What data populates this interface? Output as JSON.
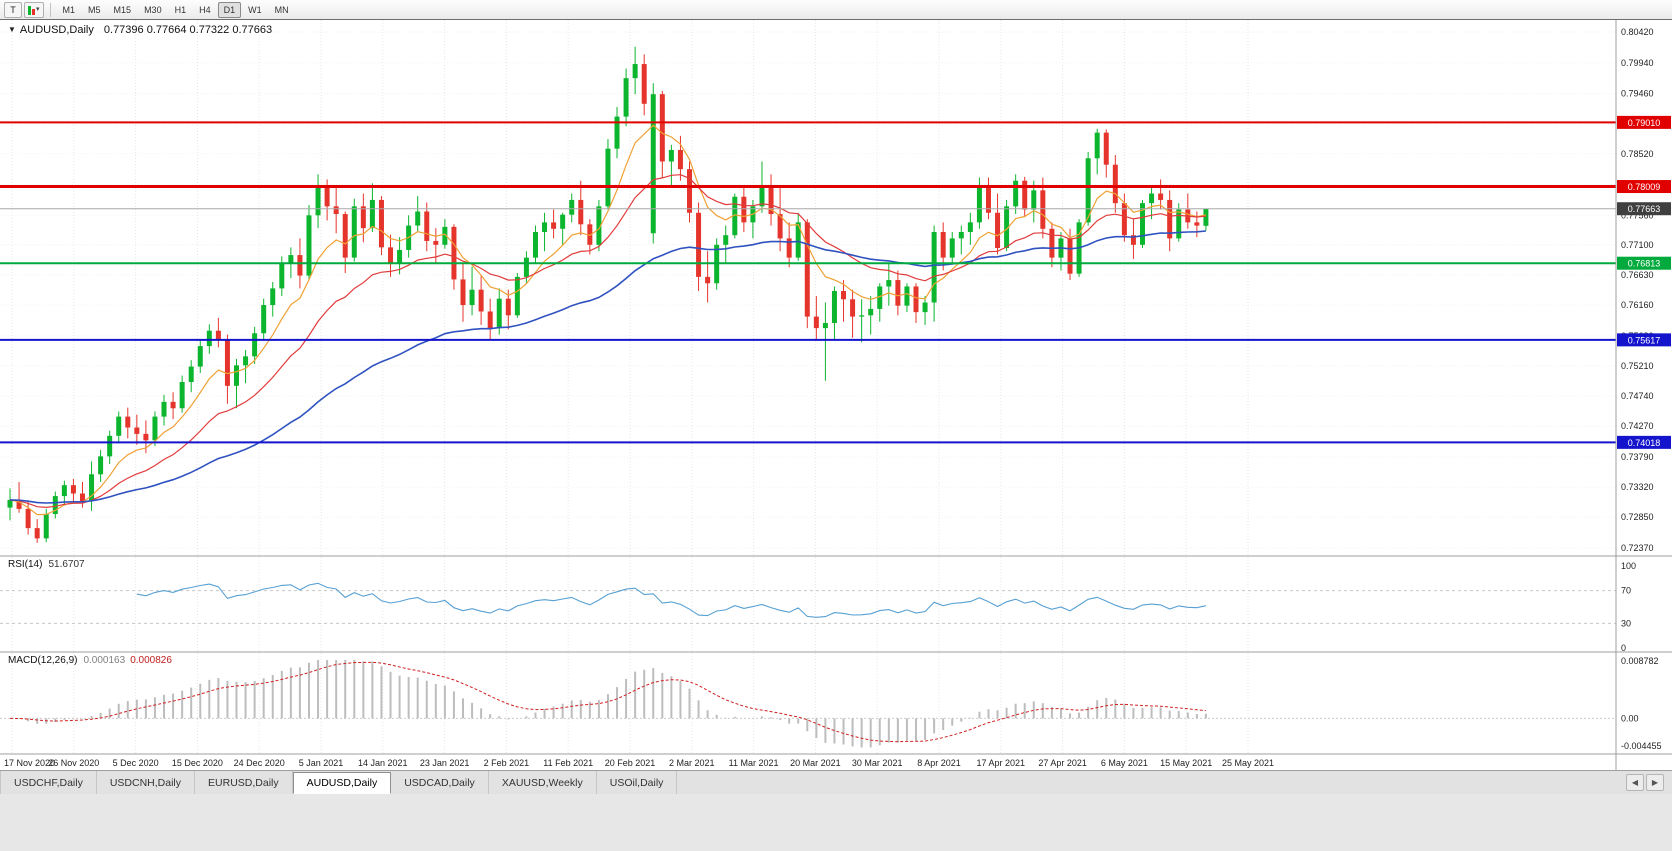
{
  "toolbar": {
    "chart_mode_label": "T",
    "timeframes": [
      "M1",
      "M5",
      "M15",
      "M30",
      "H1",
      "H4",
      "D1",
      "W1",
      "MN"
    ],
    "active_timeframe": "D1"
  },
  "icons": {
    "collapse": "▼",
    "dropdown": "▾",
    "scroll_left": "◀",
    "scroll_right": "▶"
  },
  "chart": {
    "symbol": "AUDUSD,Daily",
    "ohlc_text": "0.77396 0.77664 0.77322 0.77663",
    "current_price": "0.77663",
    "price_axis": [
      "0.80420",
      "0.79940",
      "0.79460",
      "0.78980",
      "0.78520",
      "0.78040",
      "0.77560",
      "0.77100",
      "0.76630",
      "0.76160",
      "0.75680",
      "0.75210",
      "0.74740",
      "0.74270",
      "0.73790",
      "0.73320",
      "0.72850",
      "0.72370"
    ],
    "date_axis": [
      "17 Nov 2020",
      "26 Nov 2020",
      "5 Dec 2020",
      "15 Dec 2020",
      "24 Dec 2020",
      "5 Jan 2021",
      "14 Jan 2021",
      "23 Jan 2021",
      "2 Feb 2021",
      "11 Feb 2021",
      "20 Feb 2021",
      "2 Mar 2021",
      "11 Mar 2021",
      "20 Mar 2021",
      "30 Mar 2021",
      "8 Apr 2021",
      "17 Apr 2021",
      "27 Apr 2021",
      "6 May 2021",
      "15 May 2021",
      "25 May 2021"
    ],
    "hlines": [
      {
        "price": 0.7901,
        "label": "0.79010",
        "color": "#e00000",
        "width": 2
      },
      {
        "price": 0.78009,
        "label": "0.78009",
        "color": "#e00000",
        "width": 3
      },
      {
        "price": 0.76813,
        "label": "0.76813",
        "color": "#00aa3c",
        "width": 2
      },
      {
        "price": 0.75617,
        "label": "0.75617",
        "color": "#1414cc",
        "width": 2
      },
      {
        "price": 0.74018,
        "label": "0.74018",
        "color": "#1414cc",
        "width": 2
      }
    ],
    "colors": {
      "up": "#0cb52e",
      "down": "#e5342c",
      "ma_fast": "#efa134",
      "ma_mid": "#e23b3b",
      "ma_slow": "#2f52c0",
      "rsi_line": "#57a0d3",
      "macd_hist": "#bdbdbd",
      "macd_signal": "#d02020",
      "grid_v": "#e6e6e6",
      "grid_h": "#f1f1f1",
      "current_line": "#a8a8a8",
      "current_badge": "#3f3f3f"
    }
  },
  "indicators": {
    "rsi": {
      "label": "RSI(14)",
      "value": "51.6707",
      "period": 14,
      "levels": [
        "100",
        "70",
        "30",
        "0"
      ],
      "dashed_levels": [
        70,
        30
      ],
      "range": [
        0,
        100
      ]
    },
    "macd": {
      "label": "MACD(12,26,9)",
      "value_main": "0.000163",
      "value_signal": "0.000826",
      "params": [
        12,
        26,
        9
      ],
      "levels": [
        "0.008782",
        "0.00",
        "-0.004455"
      ],
      "range": [
        -0.004455,
        0.008782
      ]
    }
  },
  "tabs": {
    "items": [
      "USDCHF,Daily",
      "USDCNH,Daily",
      "EURUSD,Daily",
      "AUDUSD,Daily",
      "USDCAD,Daily",
      "XAUUSD,Weekly",
      "USOil,Daily"
    ],
    "active": "AUDUSD,Daily"
  },
  "chart_data": {
    "type": "candlestick",
    "symbol": "AUDUSD",
    "timeframe": "Daily",
    "ylim": [
      0.7237,
      0.8042
    ],
    "last_bar": {
      "open": 0.77396,
      "high": 0.77664,
      "low": 0.77322,
      "close": 0.77663
    },
    "moving_averages": [
      {
        "period": 8,
        "color_key": "ma_fast"
      },
      {
        "period": 20,
        "color_key": "ma_mid"
      },
      {
        "period": 55,
        "color_key": "ma_slow"
      }
    ],
    "ohlc": [
      [
        0.73,
        0.733,
        0.728,
        0.7312
      ],
      [
        0.7312,
        0.734,
        0.7292,
        0.7298
      ],
      [
        0.7298,
        0.731,
        0.7258,
        0.7268
      ],
      [
        0.7268,
        0.7282,
        0.7245,
        0.7252
      ],
      [
        0.7252,
        0.7298,
        0.7246,
        0.729
      ],
      [
        0.729,
        0.7325,
        0.7283,
        0.7318
      ],
      [
        0.7318,
        0.7342,
        0.7303,
        0.7335
      ],
      [
        0.7335,
        0.7345,
        0.7308,
        0.7322
      ],
      [
        0.7322,
        0.734,
        0.73,
        0.731
      ],
      [
        0.731,
        0.7372,
        0.7295,
        0.7352
      ],
      [
        0.7352,
        0.739,
        0.734,
        0.738
      ],
      [
        0.738,
        0.742,
        0.7368,
        0.7412
      ],
      [
        0.7412,
        0.745,
        0.74,
        0.7442
      ],
      [
        0.7442,
        0.7456,
        0.7408,
        0.7425
      ],
      [
        0.7425,
        0.7445,
        0.7398,
        0.7415
      ],
      [
        0.7415,
        0.7436,
        0.7385,
        0.7405
      ],
      [
        0.7405,
        0.745,
        0.7396,
        0.7442
      ],
      [
        0.7442,
        0.7476,
        0.7428,
        0.7465
      ],
      [
        0.7465,
        0.748,
        0.7438,
        0.7455
      ],
      [
        0.7455,
        0.7506,
        0.7448,
        0.7496
      ],
      [
        0.7496,
        0.753,
        0.748,
        0.752
      ],
      [
        0.752,
        0.7562,
        0.751,
        0.7552
      ],
      [
        0.7552,
        0.7586,
        0.754,
        0.7576
      ],
      [
        0.7576,
        0.7596,
        0.755,
        0.7562
      ],
      [
        0.7562,
        0.757,
        0.7462,
        0.749
      ],
      [
        0.749,
        0.7532,
        0.7455,
        0.7522
      ],
      [
        0.7522,
        0.7546,
        0.7494,
        0.7536
      ],
      [
        0.7536,
        0.7582,
        0.7524,
        0.7572
      ],
      [
        0.7572,
        0.7626,
        0.756,
        0.7616
      ],
      [
        0.7616,
        0.7652,
        0.7598,
        0.7642
      ],
      [
        0.7642,
        0.7692,
        0.763,
        0.7682
      ],
      [
        0.7682,
        0.7706,
        0.7658,
        0.7694
      ],
      [
        0.7694,
        0.772,
        0.7642,
        0.7662
      ],
      [
        0.7662,
        0.7772,
        0.7655,
        0.7756
      ],
      [
        0.7756,
        0.782,
        0.7736,
        0.78
      ],
      [
        0.78,
        0.7812,
        0.7748,
        0.777
      ],
      [
        0.777,
        0.78,
        0.7728,
        0.7758
      ],
      [
        0.7758,
        0.7762,
        0.7666,
        0.769
      ],
      [
        0.769,
        0.7782,
        0.7684,
        0.777
      ],
      [
        0.777,
        0.779,
        0.7714,
        0.7736
      ],
      [
        0.7736,
        0.7806,
        0.773,
        0.778
      ],
      [
        0.778,
        0.7786,
        0.7694,
        0.7706
      ],
      [
        0.7706,
        0.7726,
        0.766,
        0.768
      ],
      [
        0.768,
        0.7722,
        0.7664,
        0.7702
      ],
      [
        0.7702,
        0.7756,
        0.769,
        0.774
      ],
      [
        0.774,
        0.7786,
        0.773,
        0.7762
      ],
      [
        0.7762,
        0.7776,
        0.77,
        0.7716
      ],
      [
        0.7716,
        0.7736,
        0.768,
        0.771
      ],
      [
        0.771,
        0.775,
        0.7704,
        0.7738
      ],
      [
        0.7738,
        0.7742,
        0.764,
        0.7656
      ],
      [
        0.7656,
        0.768,
        0.759,
        0.7616
      ],
      [
        0.7616,
        0.7676,
        0.76,
        0.764
      ],
      [
        0.764,
        0.7662,
        0.7585,
        0.7606
      ],
      [
        0.7606,
        0.7626,
        0.7563,
        0.758
      ],
      [
        0.758,
        0.7642,
        0.757,
        0.7626
      ],
      [
        0.7626,
        0.764,
        0.7578,
        0.76
      ],
      [
        0.76,
        0.7666,
        0.7596,
        0.766
      ],
      [
        0.766,
        0.77,
        0.765,
        0.769
      ],
      [
        0.769,
        0.774,
        0.768,
        0.773
      ],
      [
        0.773,
        0.776,
        0.77,
        0.7745
      ],
      [
        0.7745,
        0.7765,
        0.772,
        0.7735
      ],
      [
        0.7735,
        0.776,
        0.771,
        0.7757
      ],
      [
        0.7757,
        0.779,
        0.7745,
        0.778
      ],
      [
        0.778,
        0.781,
        0.7725,
        0.7742
      ],
      [
        0.7742,
        0.775,
        0.7695,
        0.771
      ],
      [
        0.771,
        0.778,
        0.77,
        0.777
      ],
      [
        0.777,
        0.7875,
        0.7765,
        0.786
      ],
      [
        0.786,
        0.7925,
        0.7845,
        0.791
      ],
      [
        0.791,
        0.7985,
        0.7895,
        0.797
      ],
      [
        0.797,
        0.8019,
        0.7945,
        0.7992
      ],
      [
        0.7992,
        0.8007,
        0.7912,
        0.793
      ],
      [
        0.7728,
        0.7962,
        0.7712,
        0.7945
      ],
      [
        0.7945,
        0.795,
        0.7815,
        0.784
      ],
      [
        0.784,
        0.7866,
        0.78,
        0.7858
      ],
      [
        0.7858,
        0.788,
        0.781,
        0.7828
      ],
      [
        0.7828,
        0.784,
        0.7745,
        0.776
      ],
      [
        0.776,
        0.7776,
        0.7638,
        0.766
      ],
      [
        0.766,
        0.77,
        0.762,
        0.765
      ],
      [
        0.765,
        0.772,
        0.764,
        0.771
      ],
      [
        0.771,
        0.774,
        0.768,
        0.7725
      ],
      [
        0.7725,
        0.779,
        0.772,
        0.7785
      ],
      [
        0.7785,
        0.78,
        0.773,
        0.7745
      ],
      [
        0.7745,
        0.778,
        0.772,
        0.777
      ],
      [
        0.777,
        0.784,
        0.776,
        0.78
      ],
      [
        0.78,
        0.782,
        0.774,
        0.7758
      ],
      [
        0.7758,
        0.78,
        0.77,
        0.772
      ],
      [
        0.772,
        0.7745,
        0.7675,
        0.769
      ],
      [
        0.769,
        0.776,
        0.7685,
        0.7745
      ],
      [
        0.7745,
        0.775,
        0.758,
        0.7598
      ],
      [
        0.7598,
        0.763,
        0.756,
        0.758
      ],
      [
        0.758,
        0.762,
        0.7498,
        0.7588
      ],
      [
        0.7588,
        0.7645,
        0.756,
        0.7638
      ],
      [
        0.7638,
        0.7655,
        0.759,
        0.7625
      ],
      [
        0.7625,
        0.764,
        0.7565,
        0.7598
      ],
      [
        0.7598,
        0.7625,
        0.7558,
        0.76
      ],
      [
        0.76,
        0.763,
        0.757,
        0.761
      ],
      [
        0.761,
        0.765,
        0.759,
        0.7645
      ],
      [
        0.7645,
        0.768,
        0.7615,
        0.7655
      ],
      [
        0.7655,
        0.767,
        0.76,
        0.7615
      ],
      [
        0.7615,
        0.765,
        0.7605,
        0.7645
      ],
      [
        0.7645,
        0.765,
        0.7588,
        0.7605
      ],
      [
        0.7605,
        0.763,
        0.7585,
        0.762
      ],
      [
        0.762,
        0.774,
        0.759,
        0.773
      ],
      [
        0.773,
        0.7745,
        0.767,
        0.769
      ],
      [
        0.769,
        0.773,
        0.768,
        0.772
      ],
      [
        0.772,
        0.774,
        0.7695,
        0.773
      ],
      [
        0.773,
        0.776,
        0.771,
        0.7745
      ],
      [
        0.7745,
        0.7815,
        0.7735,
        0.78
      ],
      [
        0.78,
        0.7815,
        0.775,
        0.776
      ],
      [
        0.776,
        0.779,
        0.7695,
        0.7705
      ],
      [
        0.7705,
        0.778,
        0.77,
        0.777
      ],
      [
        0.777,
        0.782,
        0.7758,
        0.781
      ],
      [
        0.781,
        0.7816,
        0.7755,
        0.7765
      ],
      [
        0.7765,
        0.781,
        0.7745,
        0.7795
      ],
      [
        0.7795,
        0.7815,
        0.772,
        0.7735
      ],
      [
        0.7735,
        0.7745,
        0.7675,
        0.769
      ],
      [
        0.769,
        0.773,
        0.767,
        0.772
      ],
      [
        0.772,
        0.7735,
        0.7655,
        0.7665
      ],
      [
        0.7665,
        0.775,
        0.766,
        0.7745
      ],
      [
        0.7745,
        0.7855,
        0.774,
        0.7845
      ],
      [
        0.7845,
        0.7891,
        0.782,
        0.7885
      ],
      [
        0.7885,
        0.789,
        0.7815,
        0.7835
      ],
      [
        0.7835,
        0.785,
        0.776,
        0.7775
      ],
      [
        0.7775,
        0.779,
        0.7715,
        0.7725
      ],
      [
        0.7725,
        0.775,
        0.7688,
        0.771
      ],
      [
        0.771,
        0.778,
        0.7705,
        0.7775
      ],
      [
        0.7775,
        0.78,
        0.775,
        0.779
      ],
      [
        0.779,
        0.7812,
        0.7765,
        0.778
      ],
      [
        0.778,
        0.7795,
        0.77,
        0.772
      ],
      [
        0.772,
        0.7775,
        0.7715,
        0.7765
      ],
      [
        0.7765,
        0.779,
        0.7735,
        0.7745
      ],
      [
        0.7745,
        0.7762,
        0.7722,
        0.774
      ],
      [
        0.77396,
        0.77664,
        0.77322,
        0.77663
      ]
    ]
  }
}
